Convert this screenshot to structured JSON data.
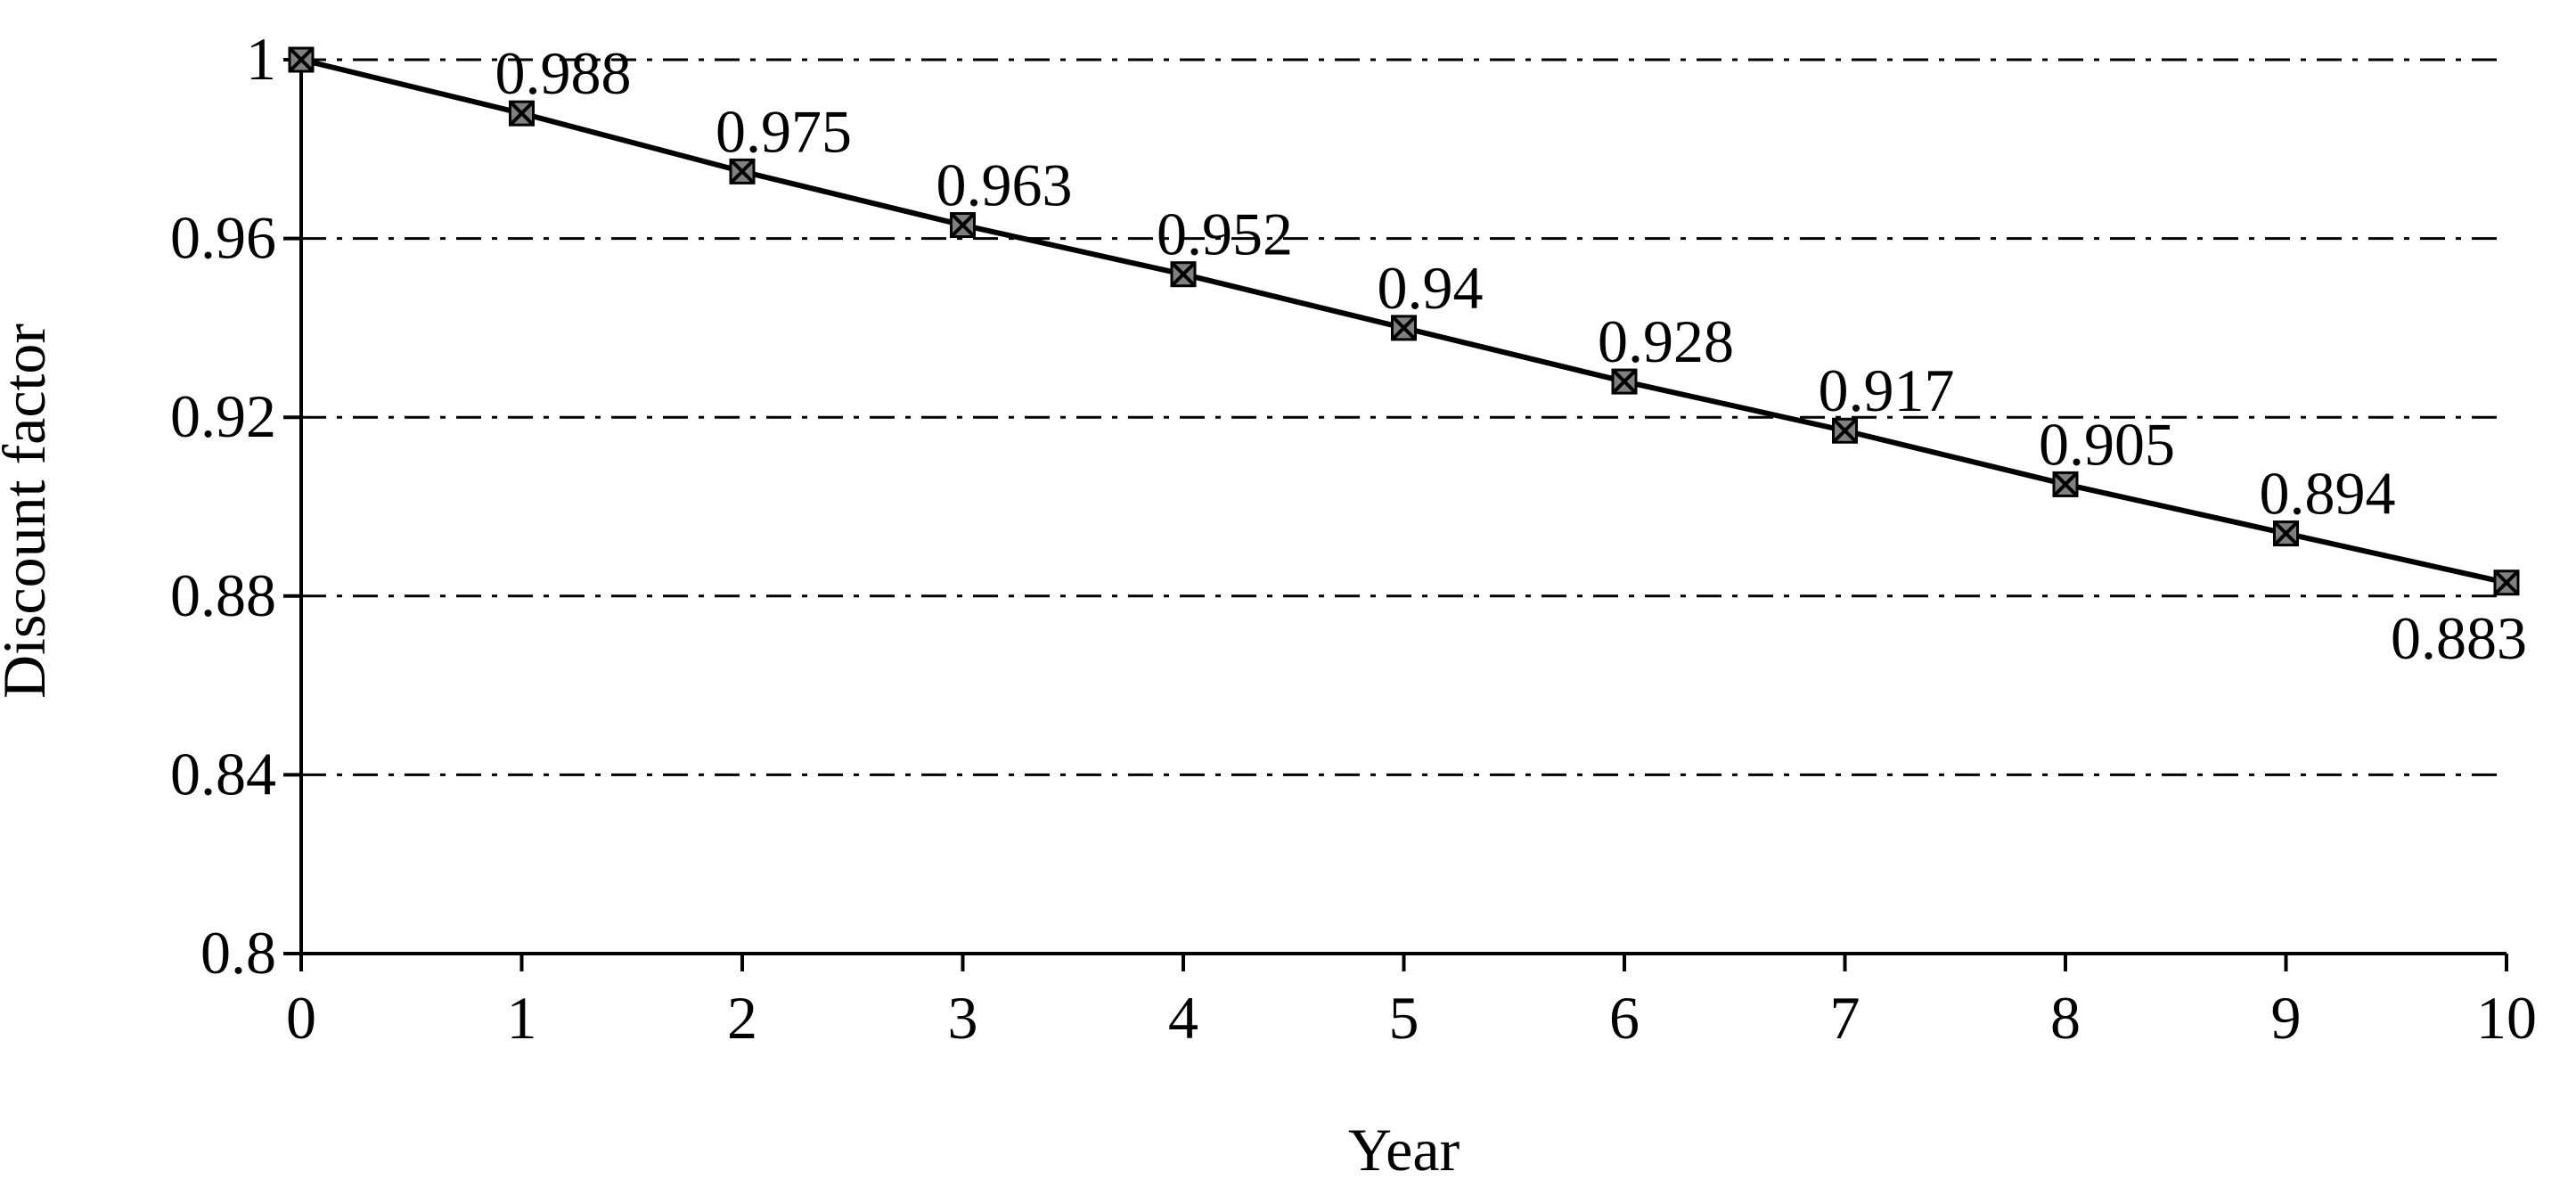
{
  "chart_data": {
    "type": "line",
    "title": "",
    "xlabel": "Year",
    "ylabel": "Discount factor",
    "x": [
      0,
      1,
      2,
      3,
      4,
      5,
      6,
      7,
      8,
      9,
      10
    ],
    "x_tick_labels": [
      "0",
      "1",
      "2",
      "3",
      "4",
      "5",
      "6",
      "7",
      "8",
      "9",
      "10"
    ],
    "y_tick_values": [
      0.8,
      0.84,
      0.88,
      0.92,
      0.96,
      1
    ],
    "y_tick_labels": [
      "0.8",
      "0.84",
      "0.88",
      "0.92",
      "0.96",
      "1"
    ],
    "xlim": [
      0,
      10
    ],
    "ylim": [
      0.8,
      1
    ],
    "grid": "horizontal dash-dot",
    "legend": "none",
    "series": [
      {
        "values": [
          1,
          0.988,
          0.975,
          0.963,
          0.952,
          0.94,
          0.928,
          0.917,
          0.905,
          0.894,
          0.883
        ],
        "data_labels": [
          "",
          "0.988",
          "0.975",
          "0.963",
          "0.952",
          "0.94",
          "0.928",
          "0.917",
          "0.905",
          "0.894",
          "0.883"
        ],
        "marker": "square-with-x",
        "line_color": "#000000",
        "marker_fill": "#808080"
      }
    ]
  }
}
